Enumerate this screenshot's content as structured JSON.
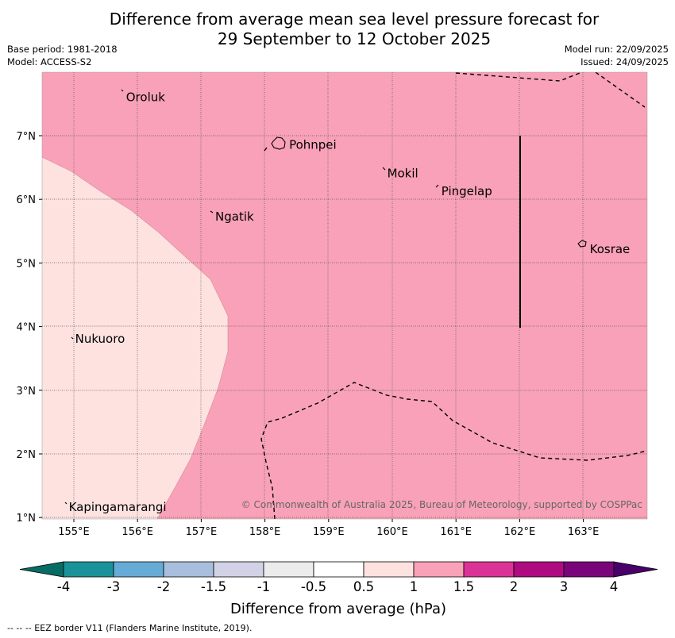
{
  "title_line1": "Difference from average mean sea level pressure forecast for",
  "title_line2": "29 September to 12 October 2025",
  "base_period": "Base period: 1981-2018",
  "model": "Model: ACCESS-S2",
  "model_run": "Model run: 22/09/2025",
  "issued": "Issued: 24/09/2025",
  "copyright": "© Commonwealth of Australia 2025, Bureau of Meteorology, supported by COSPPac",
  "places": [
    {
      "name": "Oroluk",
      "lon": 155.77,
      "lat": 7.62
    },
    {
      "name": "Pohnpei",
      "lon": 158.33,
      "lat": 6.87
    },
    {
      "name": "Mokil",
      "lon": 159.87,
      "lat": 6.42
    },
    {
      "name": "Pingelap",
      "lon": 160.72,
      "lat": 6.14
    },
    {
      "name": "Ngatik",
      "lon": 157.17,
      "lat": 5.74
    },
    {
      "name": "Kosrae",
      "lon": 163.05,
      "lat": 5.23
    },
    {
      "name": "Nukuoro",
      "lon": 154.97,
      "lat": 3.82
    },
    {
      "name": "Kapingamarangi",
      "lon": 154.87,
      "lat": 1.18
    }
  ],
  "lon_ticks": [
    "155°E",
    "156°E",
    "157°E",
    "158°E",
    "159°E",
    "160°E",
    "161°E",
    "162°E",
    "163°E"
  ],
  "lat_ticks": [
    "7°N",
    "6°N",
    "5°N",
    "4°N",
    "3°N",
    "2°N",
    "1°N"
  ],
  "colorbar": {
    "colors": [
      "#1a9299",
      "#66abd5",
      "#a8bedd",
      "#d2d2e6",
      "#ececec",
      "#ffffff",
      "#fde2e0",
      "#f9a1b8",
      "#db3297",
      "#ad0b7f",
      "#7a057a"
    ],
    "ext_low": "#086c66",
    "ext_high": "#4a006a",
    "tick_labels": [
      "-4",
      "-3",
      "-2",
      "-1.5",
      "-1",
      "-0.5",
      "0.5",
      "1",
      "1.5",
      "2",
      "3",
      "4"
    ],
    "label": "Difference from average (hPa)"
  },
  "field_colors": {
    "main": "#f9a1b8",
    "low": "#fde2e0"
  },
  "footer": "--  --  -- EEZ border V11 (Flanders Marine Institute, 2019)."
}
